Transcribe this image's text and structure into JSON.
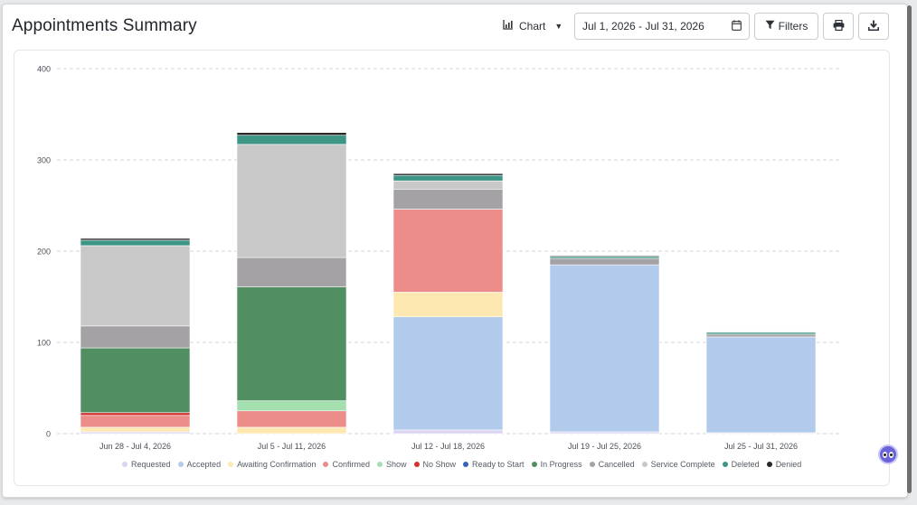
{
  "header": {
    "title": "Appointments Summary",
    "view_label": "Chart",
    "date_range": "Jul 1, 2026 - Jul 31, 2026",
    "filters_label": "Filters"
  },
  "icons": {
    "chart": "bar-chart-icon",
    "dropdown": "caret-down-icon",
    "calendar": "calendar-icon",
    "filter": "funnel-icon",
    "print": "printer-icon",
    "download": "download-icon",
    "helper": "assistant-face-icon"
  },
  "chart_data": {
    "type": "bar",
    "stacked": true,
    "categories": [
      "Jun 28 - Jul 4, 2026",
      "Jul 5 - Jul 11, 2026",
      "Jul 12 - Jul 18, 2026",
      "Jul 19 - Jul 25, 2026",
      "Jul 25 - Jul 31, 2026"
    ],
    "ylim": [
      0,
      400
    ],
    "yticks": [
      0,
      100,
      200,
      300,
      400
    ],
    "grid": true,
    "legend_position": "bottom",
    "series": [
      {
        "name": "Requested",
        "color": "#d9d4ef",
        "values": [
          2,
          0,
          4,
          2,
          1
        ]
      },
      {
        "name": "Accepted",
        "color": "#b2cbec",
        "values": [
          0,
          0,
          124,
          183,
          105
        ]
      },
      {
        "name": "Awaiting Confirmation",
        "color": "#fde8b2",
        "values": [
          5,
          7,
          27,
          0,
          0
        ]
      },
      {
        "name": "Confirmed",
        "color": "#ec8d8a",
        "values": [
          13,
          18,
          91,
          0,
          0
        ]
      },
      {
        "name": "Show",
        "color": "#a4dfb0",
        "values": [
          0,
          11,
          0,
          0,
          0
        ]
      },
      {
        "name": "No Show",
        "color": "#d5322f",
        "values": [
          3,
          0,
          0,
          0,
          0
        ]
      },
      {
        "name": "Ready to Start",
        "color": "#3763b7",
        "values": [
          0,
          0,
          0,
          0,
          0
        ]
      },
      {
        "name": "In Progress",
        "color": "#518e62",
        "values": [
          71,
          125,
          0,
          0,
          0
        ]
      },
      {
        "name": "Cancelled",
        "color": "#a4a2a5",
        "values": [
          24,
          32,
          22,
          7,
          3
        ]
      },
      {
        "name": "Service Complete",
        "color": "#c8c8c8",
        "values": [
          88,
          124,
          9,
          0,
          0
        ]
      },
      {
        "name": "Deleted",
        "color": "#3d9585",
        "values": [
          6,
          10,
          6,
          2,
          2
        ]
      },
      {
        "name": "Denied",
        "color": "#282828",
        "values": [
          2,
          3,
          2,
          1,
          0
        ]
      }
    ]
  }
}
